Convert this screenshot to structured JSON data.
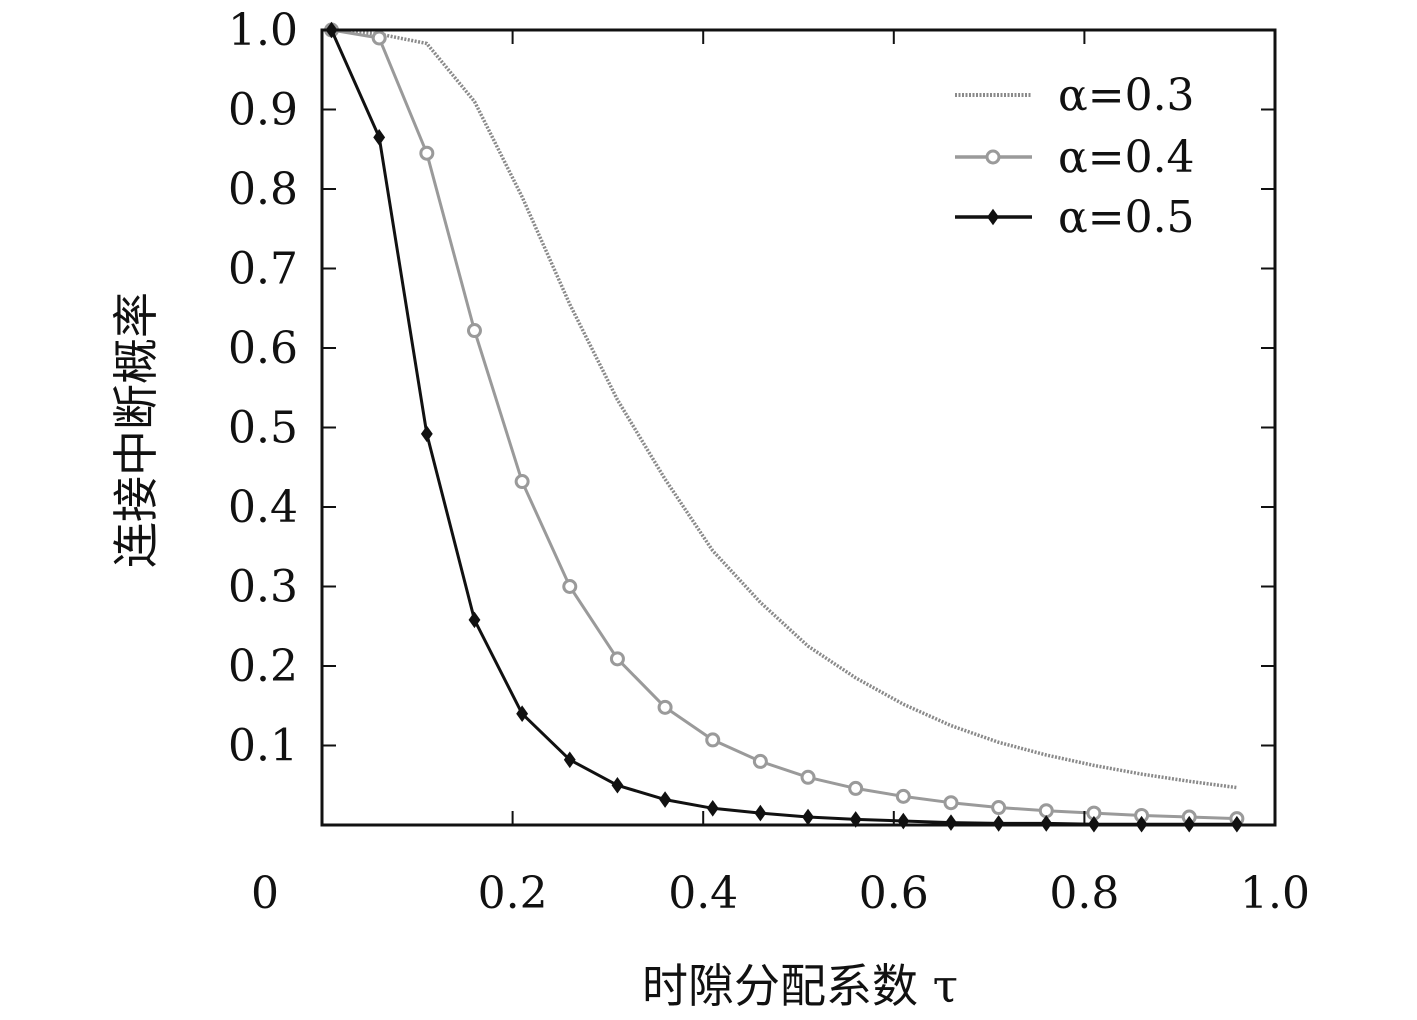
{
  "chart_data": {
    "type": "line",
    "xlabel": "时隙分配系数 τ",
    "ylabel": "连接中断概率",
    "xlim": [
      0,
      1.0
    ],
    "ylim": [
      0,
      1.0
    ],
    "x_origin_label": "0",
    "x_ticks": [
      {
        "value": 0.2,
        "label": "0.2"
      },
      {
        "value": 0.4,
        "label": "0.4"
      },
      {
        "value": 0.6,
        "label": "0.6"
      },
      {
        "value": 0.8,
        "label": "0.8"
      },
      {
        "value": 1.0,
        "label": "1.0"
      }
    ],
    "y_ticks": [
      {
        "value": 0.1,
        "label": "0.1"
      },
      {
        "value": 0.2,
        "label": "0.2"
      },
      {
        "value": 0.3,
        "label": "0.3"
      },
      {
        "value": 0.4,
        "label": "0.4"
      },
      {
        "value": 0.5,
        "label": "0.5"
      },
      {
        "value": 0.6,
        "label": "0.6"
      },
      {
        "value": 0.7,
        "label": "0.7"
      },
      {
        "value": 0.8,
        "label": "0.8"
      },
      {
        "value": 0.9,
        "label": "0.9"
      },
      {
        "value": 1.0,
        "label": "1.0"
      }
    ],
    "grid": false,
    "legend_position": "top-right",
    "x": [
      0.01,
      0.06,
      0.11,
      0.16,
      0.21,
      0.26,
      0.31,
      0.36,
      0.41,
      0.46,
      0.51,
      0.56,
      0.61,
      0.66,
      0.71,
      0.76,
      0.81,
      0.86,
      0.91,
      0.96
    ],
    "series": [
      {
        "name": "α=0.3",
        "color": "#8a8a8a",
        "style": "dotted",
        "marker": "none",
        "values": [
          1.0,
          0.995,
          0.983,
          0.91,
          0.79,
          0.655,
          0.535,
          0.435,
          0.345,
          0.28,
          0.225,
          0.185,
          0.152,
          0.125,
          0.104,
          0.088,
          0.075,
          0.064,
          0.055,
          0.047
        ]
      },
      {
        "name": "α=0.4",
        "color": "#9a9a9a",
        "style": "solid",
        "marker": "circle",
        "values": [
          1.0,
          0.99,
          0.845,
          0.622,
          0.432,
          0.3,
          0.209,
          0.148,
          0.107,
          0.08,
          0.06,
          0.046,
          0.036,
          0.028,
          0.022,
          0.018,
          0.015,
          0.012,
          0.01,
          0.008
        ]
      },
      {
        "name": "α=0.5",
        "color": "#111111",
        "style": "solid",
        "marker": "diamond",
        "values": [
          1.0,
          0.865,
          0.492,
          0.258,
          0.14,
          0.082,
          0.05,
          0.032,
          0.021,
          0.015,
          0.01,
          0.007,
          0.005,
          0.003,
          0.002,
          0.002,
          0.001,
          0.001,
          0.001,
          0.001
        ]
      }
    ]
  }
}
